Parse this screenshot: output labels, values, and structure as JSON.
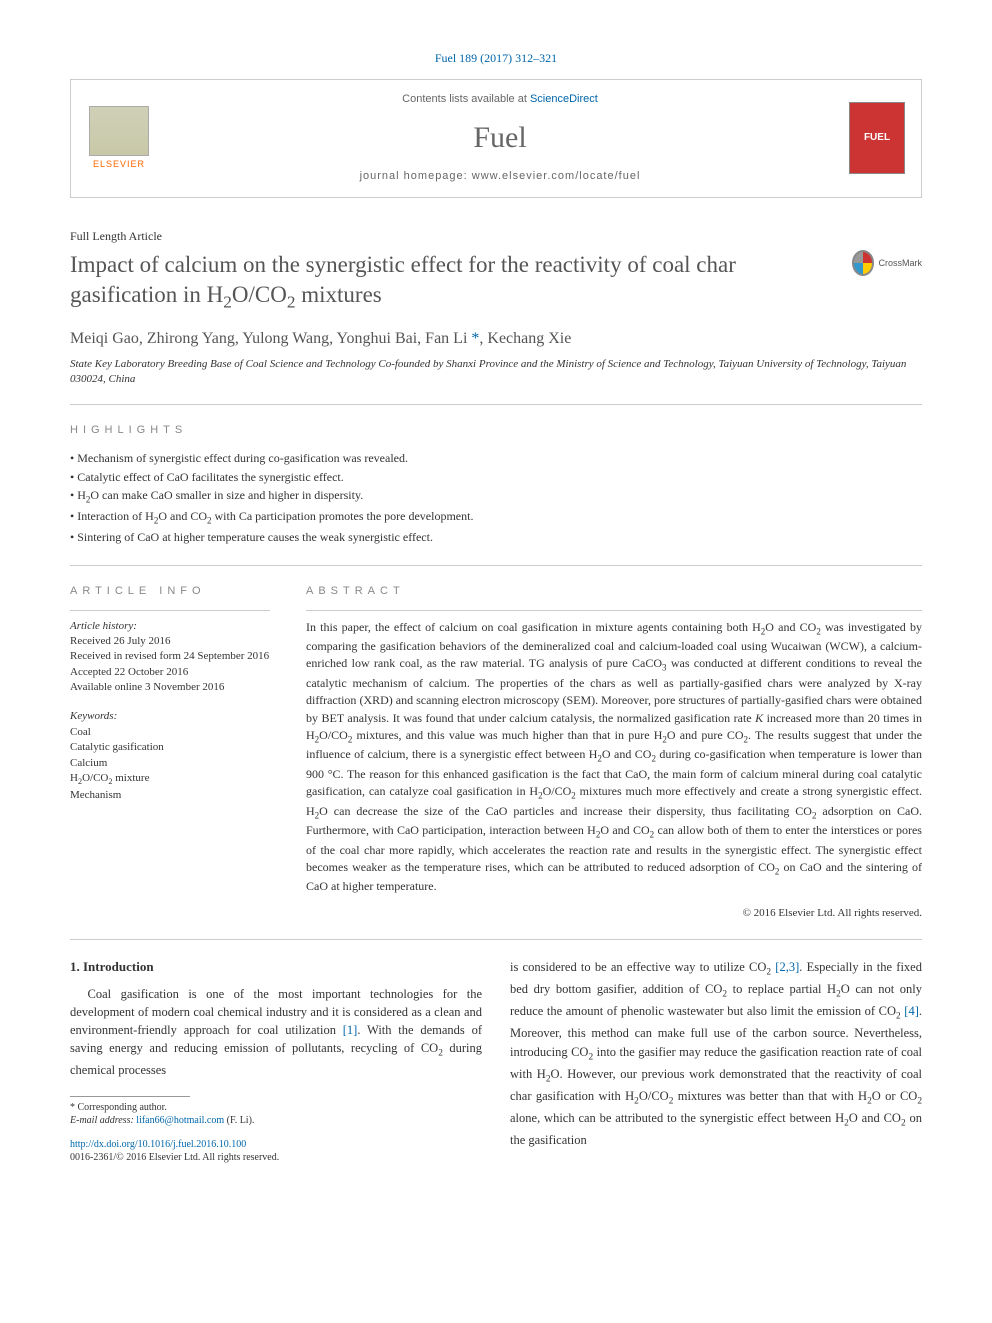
{
  "header": {
    "reference": "Fuel 189 (2017) 312–321",
    "contents_prefix": "Contents lists available at ",
    "contents_link": "ScienceDirect",
    "journal": "Fuel",
    "homepage_prefix": "journal homepage: ",
    "homepage_url": "www.elsevier.com/locate/fuel",
    "publisher": "ELSEVIER",
    "cover_label": "FUEL",
    "crossmark_label": "CrossMark"
  },
  "article": {
    "type": "Full Length Article",
    "title_html": "Impact of calcium on the synergistic effect for the reactivity of coal char gasification in H<sub>2</sub>O/CO<sub>2</sub> mixtures",
    "authors_html": "Meiqi Gao, Zhirong Yang, Yulong Wang, Yonghui Bai, Fan Li <span class=\"corr\">*</span>, Kechang Xie",
    "affiliation": "State Key Laboratory Breeding Base of Coal Science and Technology Co-founded by Shanxi Province and the Ministry of Science and Technology, Taiyuan University of Technology, Taiyuan 030024, China"
  },
  "highlights": {
    "heading": "HIGHLIGHTS",
    "items": [
      "Mechanism of synergistic effect during co-gasification was revealed.",
      "Catalytic effect of CaO facilitates the synergistic effect.",
      "H<sub>2</sub>O can make CaO smaller in size and higher in dispersity.",
      "Interaction of H<sub>2</sub>O and CO<sub>2</sub> with Ca participation promotes the pore development.",
      "Sintering of CaO at higher temperature causes the weak synergistic effect."
    ]
  },
  "info": {
    "heading": "ARTICLE INFO",
    "history_label": "Article history:",
    "history": [
      "Received 26 July 2016",
      "Received in revised form 24 September 2016",
      "Accepted 22 October 2016",
      "Available online 3 November 2016"
    ],
    "keywords_label": "Keywords:",
    "keywords": [
      "Coal",
      "Catalytic gasification",
      "Calcium",
      "H<sub>2</sub>O/CO<sub>2</sub> mixture",
      "Mechanism"
    ]
  },
  "abstract": {
    "heading": "ABSTRACT",
    "text_html": "In this paper, the effect of calcium on coal gasification in mixture agents containing both H<sub>2</sub>O and CO<sub>2</sub> was investigated by comparing the gasification behaviors of the demineralized coal and calcium-loaded coal using Wucaiwan (WCW), a calcium-enriched low rank coal, as the raw material. TG analysis of pure CaCO<sub>3</sub> was conducted at different conditions to reveal the catalytic mechanism of calcium. The properties of the chars as well as partially-gasified chars were analyzed by X-ray diffraction (XRD) and scanning electron microscopy (SEM). Moreover, pore structures of partially-gasified chars were obtained by BET analysis. It was found that under calcium catalysis, the normalized gasification rate <i>K</i> increased more than 20 times in H<sub>2</sub>O/CO<sub>2</sub> mixtures, and this value was much higher than that in pure H<sub>2</sub>O and pure CO<sub>2</sub>. The results suggest that under the influence of calcium, there is a synergistic effect between H<sub>2</sub>O and CO<sub>2</sub> during co-gasification when temperature is lower than 900 °C. The reason for this enhanced gasification is the fact that CaO, the main form of calcium mineral during coal catalytic gasification, can catalyze coal gasification in H<sub>2</sub>O/CO<sub>2</sub> mixtures much more effectively and create a strong synergistic effect. H<sub>2</sub>O can decrease the size of the CaO particles and increase their dispersity, thus facilitating CO<sub>2</sub> adsorption on CaO. Furthermore, with CaO participation, interaction between H<sub>2</sub>O and CO<sub>2</sub> can allow both of them to enter the interstices or pores of the coal char more rapidly, which accelerates the reaction rate and results in the synergistic effect. The synergistic effect becomes weaker as the temperature rises, which can be attributed to reduced adsorption of CO<sub>2</sub> on CaO and the sintering of CaO at higher temperature.",
    "copyright": "© 2016 Elsevier Ltd. All rights reserved."
  },
  "body": {
    "section_number": "1.",
    "section_title": "Introduction",
    "col1_html": "Coal gasification is one of the most important technologies for the development of modern coal chemical industry and it is considered as a clean and environment-friendly approach for coal utilization <span class=\"ref-link\">[1]</span>. With the demands of saving energy and reducing emission of pollutants, recycling of CO<sub>2</sub> during chemical processes",
    "col2_html": "is considered to be an effective way to utilize CO<sub>2</sub> <span class=\"ref-link\">[2,3]</span>. Especially in the fixed bed dry bottom gasifier, addition of CO<sub>2</sub> to replace partial H<sub>2</sub>O can not only reduce the amount of phenolic wastewater but also limit the emission of CO<sub>2</sub> <span class=\"ref-link\">[4]</span>. Moreover, this method can make full use of the carbon source. Nevertheless, introducing CO<sub>2</sub> into the gasifier may reduce the gasification reaction rate of coal with H<sub>2</sub>O. However, our previous work demonstrated that the reactivity of coal char gasification with H<sub>2</sub>O/CO<sub>2</sub> mixtures was better than that with H<sub>2</sub>O or CO<sub>2</sub> alone, which can be attributed to the synergistic effect between H<sub>2</sub>O and CO<sub>2</sub> on the gasification"
  },
  "footnote": {
    "corr_label": "* Corresponding author.",
    "email_label": "E-mail address:",
    "email": "lifan66@hotmail.com",
    "email_name": "(F. Li)."
  },
  "doi": {
    "url": "http://dx.doi.org/10.1016/j.fuel.2016.10.100",
    "issn_line": "0016-2361/© 2016 Elsevier Ltd. All rights reserved."
  },
  "colors": {
    "link": "#0066aa",
    "elsevier_orange": "#ff6600",
    "cover_red": "#cc3333",
    "text": "#333333",
    "muted": "#888888",
    "border": "#cccccc"
  }
}
